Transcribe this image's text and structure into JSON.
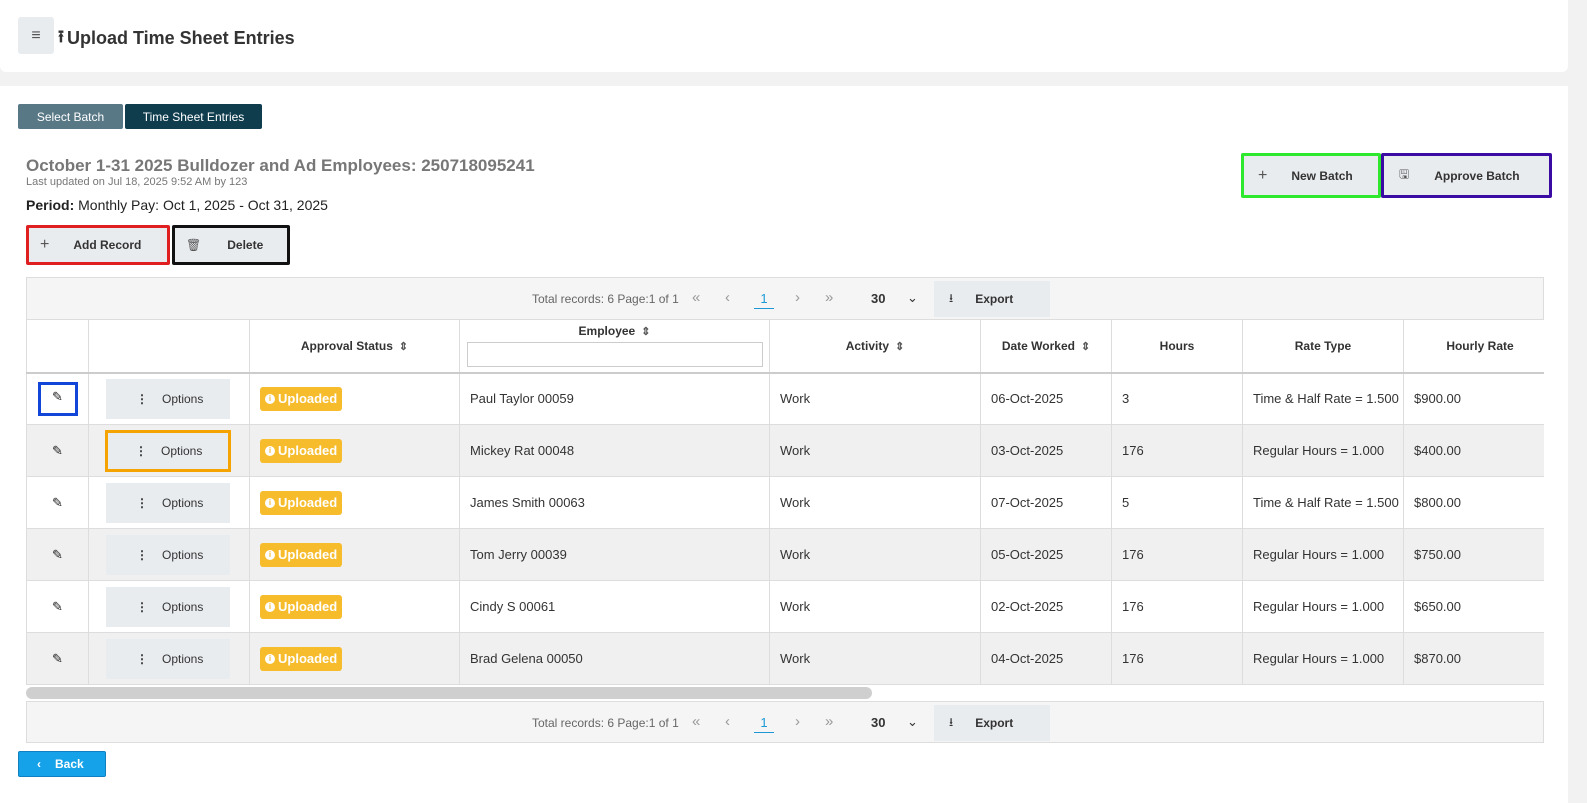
{
  "header": {
    "menu_icon": "≡",
    "upload_icon": "⭱",
    "title": "Upload Time Sheet Entries"
  },
  "tabs": [
    {
      "label": "Select Batch"
    },
    {
      "label": "Time Sheet Entries"
    }
  ],
  "batch": {
    "title": "October 1-31 2025 Bulldozer and Ad Employees: 250718095241",
    "updated": "Last updated on Jul 18, 2025 9:52 AM by 123",
    "period_label": "Period:",
    "period_value": "Monthly Pay: Oct 1, 2025 - Oct 31, 2025"
  },
  "actions": {
    "add_record": "Add Record",
    "delete": "Delete",
    "new_batch": "New Batch",
    "approve_batch": "Approve Batch"
  },
  "pager": {
    "info": "Total records: 6 Page:1 of 1",
    "page": "1",
    "page_size": "30",
    "export": "Export"
  },
  "columns": {
    "approval_status": "Approval Status",
    "employee": "Employee",
    "activity": "Activity",
    "date_worked": "Date Worked",
    "hours": "Hours",
    "rate_type": "Rate Type",
    "hourly_rate": "Hourly Rate"
  },
  "options_label": "Options",
  "status_label": "Uploaded",
  "rows": [
    {
      "employee": "Paul Taylor 00059",
      "activity": "Work",
      "date": "06-Oct-2025",
      "hours": "3",
      "rate_type": "Time & Half Rate = 1.500",
      "rate": "$900.00"
    },
    {
      "employee": "Mickey Rat 00048",
      "activity": "Work",
      "date": "03-Oct-2025",
      "hours": "176",
      "rate_type": "Regular Hours = 1.000",
      "rate": "$400.00"
    },
    {
      "employee": "James Smith 00063",
      "activity": "Work",
      "date": "07-Oct-2025",
      "hours": "5",
      "rate_type": "Time & Half Rate = 1.500",
      "rate": "$800.00"
    },
    {
      "employee": "Tom Jerry 00039",
      "activity": "Work",
      "date": "05-Oct-2025",
      "hours": "176",
      "rate_type": "Regular Hours = 1.000",
      "rate": "$750.00"
    },
    {
      "employee": "Cindy S 00061",
      "activity": "Work",
      "date": "02-Oct-2025",
      "hours": "176",
      "rate_type": "Regular Hours = 1.000",
      "rate": "$650.00"
    },
    {
      "employee": "Brad Gelena 00050",
      "activity": "Work",
      "date": "04-Oct-2025",
      "hours": "176",
      "rate_type": "Regular Hours = 1.000",
      "rate": "$870.00"
    }
  ],
  "back": "Back",
  "colors": {
    "status_badge": "#f6bc2b",
    "back_button": "#16a2e8",
    "tab_active": "#0f3d4e",
    "tab_inactive": "#587886"
  }
}
